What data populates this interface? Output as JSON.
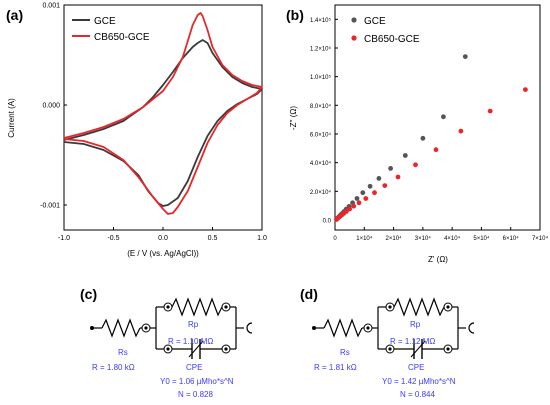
{
  "panels": {
    "a": "(a)",
    "b": "(b)",
    "c": "(c)",
    "d": "(d)"
  },
  "chart_data": [
    {
      "type": "line",
      "panel": "a",
      "title": "",
      "xlabel": "(E / V (vs. Ag/AgCl))",
      "ylabel": "Current (A)",
      "xlim": [
        -1.0,
        1.0
      ],
      "ylim": [
        -0.00125,
        0.001
      ],
      "xticks": [
        "-1.0",
        "-0.5",
        "0.0",
        "0.5",
        "1.0"
      ],
      "yticks": [
        "-0.001",
        "0.000",
        "0.001"
      ],
      "legend_position": "top-left",
      "series": [
        {
          "name": "GCE",
          "color": "#3a3a3a",
          "x": [
            -1.0,
            -0.8,
            -0.6,
            -0.4,
            -0.2,
            -0.1,
            0.0,
            0.1,
            0.2,
            0.3,
            0.35,
            0.4,
            0.45,
            0.5,
            0.6,
            0.7,
            0.8,
            0.9,
            1.0,
            0.95,
            0.85,
            0.75,
            0.65,
            0.55,
            0.45,
            0.35,
            0.25,
            0.15,
            0.05,
            0.0,
            -0.05,
            -0.15,
            -0.25,
            -0.4,
            -0.6,
            -0.8,
            -1.0
          ],
          "y": [
            -0.00035,
            -0.0003,
            -0.00024,
            -0.00016,
            -2e-05,
            8e-05,
            0.0002,
            0.00033,
            0.00047,
            0.00058,
            0.00062,
            0.00065,
            0.00062,
            0.00052,
            0.00038,
            0.00028,
            0.00022,
            0.00018,
            0.00016,
            0.00011,
            6e-05,
            1e-05,
            -6e-05,
            -0.00016,
            -0.00031,
            -0.00052,
            -0.00076,
            -0.00093,
            -0.001,
            -0.00101,
            -0.00098,
            -0.00086,
            -0.0007,
            -0.00056,
            -0.00045,
            -0.00039,
            -0.00037
          ]
        },
        {
          "name": "CB650-GCE",
          "color": "#e8262b",
          "x": [
            -1.0,
            -0.8,
            -0.6,
            -0.4,
            -0.2,
            0.0,
            0.1,
            0.2,
            0.25,
            0.3,
            0.35,
            0.38,
            0.4,
            0.45,
            0.5,
            0.6,
            0.7,
            0.8,
            0.9,
            1.0,
            0.95,
            0.85,
            0.75,
            0.65,
            0.55,
            0.45,
            0.35,
            0.25,
            0.15,
            0.1,
            0.05,
            0.0,
            -0.1,
            -0.25,
            -0.4,
            -0.6,
            -0.8,
            -1.0
          ],
          "y": [
            -0.00033,
            -0.00028,
            -0.00022,
            -0.00014,
            -2e-05,
            0.00014,
            0.00028,
            0.00048,
            0.00064,
            0.0008,
            0.0009,
            0.00092,
            0.00089,
            0.00075,
            0.00058,
            0.0004,
            0.0003,
            0.00024,
            0.0002,
            0.00018,
            0.00012,
            6e-05,
            0.0,
            -8e-05,
            -0.0002,
            -0.00038,
            -0.00062,
            -0.00086,
            -0.00102,
            -0.00108,
            -0.00109,
            -0.00104,
            -0.00092,
            -0.00072,
            -0.00055,
            -0.00042,
            -0.00036,
            -0.00034
          ]
        }
      ]
    },
    {
      "type": "scatter",
      "panel": "b",
      "title": "",
      "xlabel": "Z' (Ω)",
      "ylabel": "-Z'' (Ω)",
      "xlim": [
        0,
        70000
      ],
      "ylim": [
        -7000,
        150000
      ],
      "xticks": [
        "0",
        "1×10⁴",
        "2×10⁴",
        "3×10⁴",
        "4×10⁴",
        "5×10⁴",
        "6×10⁴",
        "7×10⁴"
      ],
      "yticks": [
        "0.0",
        "2.0×10⁴",
        "4.0×10⁴",
        "6.0×10⁴",
        "8.0×10⁴",
        "1.0×10⁵",
        "1.2×10⁵",
        "1.4×10⁵"
      ],
      "legend_position": "top-left",
      "series": [
        {
          "name": "GCE",
          "color": "#555555",
          "x": [
            500,
            800,
            1200,
            1700,
            2300,
            3000,
            3800,
            4800,
            6000,
            7500,
            9500,
            12000,
            15000,
            19000,
            24000,
            30000,
            37000,
            44500
          ],
          "y": [
            500,
            1100,
            2000,
            3100,
            4300,
            5800,
            7500,
            9500,
            12000,
            15000,
            19000,
            23500,
            29000,
            36000,
            45000,
            57000,
            72000,
            114000
          ]
        },
        {
          "name": "CB650-GCE",
          "color": "#e8262b",
          "x": [
            500,
            800,
            1200,
            1700,
            2300,
            3000,
            3900,
            5000,
            6400,
            8200,
            10500,
            13500,
            17000,
            21500,
            27500,
            34500,
            43000,
            53000,
            65000
          ],
          "y": [
            400,
            900,
            1600,
            2400,
            3400,
            4600,
            6000,
            7600,
            9600,
            12000,
            15000,
            19000,
            24000,
            30000,
            38500,
            49000,
            62000,
            76000,
            91000
          ]
        }
      ]
    }
  ],
  "circuits": {
    "c": {
      "rs_label": "Rs",
      "rs_value": "R = 1.80 kΩ",
      "rp_label": "Rp",
      "rp_value": "R = 1.10 MΩ",
      "cpe_label": "CPE",
      "y0_value": "Y0 = 1.06 µMho*s^N",
      "n_value": "N = 0.828"
    },
    "d": {
      "rs_label": "Rs",
      "rs_value": "R = 1.81 kΩ",
      "rp_label": "Rp",
      "rp_value": "R = 1.12 MΩ",
      "cpe_label": "CPE",
      "y0_value": "Y0 = 1.42 µMho*s^N",
      "n_value": "N = 0.844"
    }
  }
}
